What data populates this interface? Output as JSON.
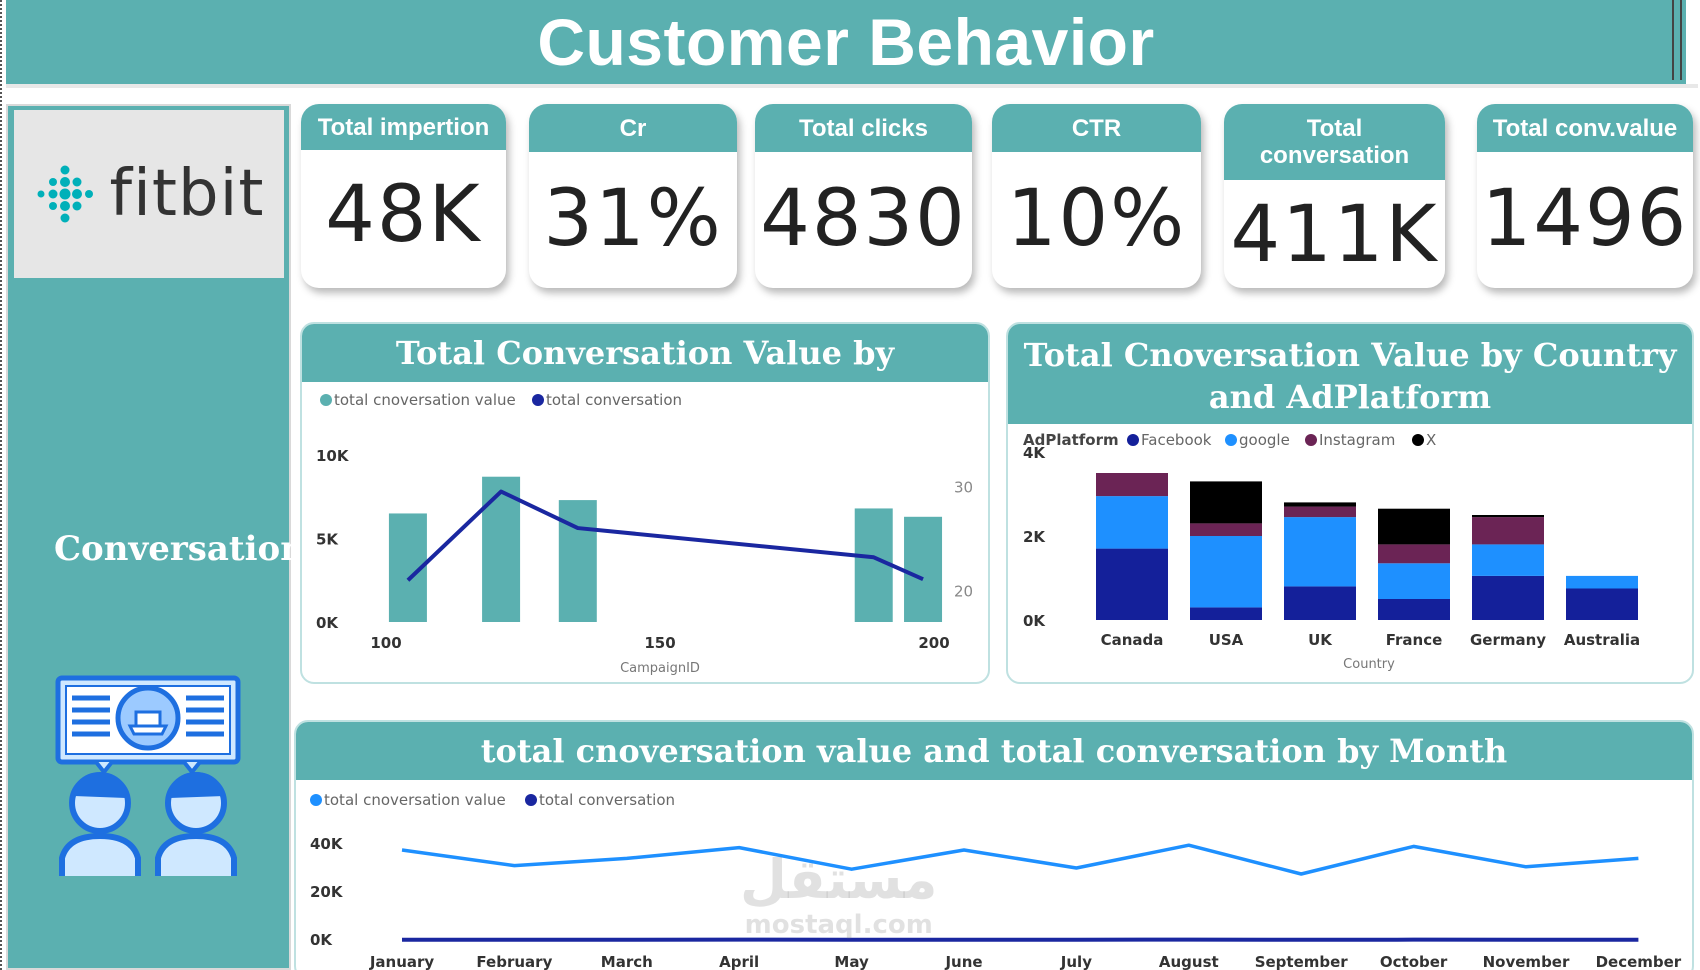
{
  "header": {
    "title": "Customer Behavior"
  },
  "sidebar": {
    "logo_text": "fitbit",
    "label": "Conversation"
  },
  "kpis": [
    {
      "label": "Total impertion",
      "value": "48K"
    },
    {
      "label": "Cr",
      "value": "31%"
    },
    {
      "label": "Total clicks",
      "value": "4830"
    },
    {
      "label": "CTR",
      "value": "10%"
    },
    {
      "label": "Total conversation",
      "value": "411K"
    },
    {
      "label": "Total conv.value",
      "value": "1496"
    }
  ],
  "colors": {
    "teal": "#5bb0b0",
    "navy": "#1a27a0",
    "blue": "#1e90ff",
    "dark_navy": "#14209a",
    "plum": "#6b2455",
    "black": "#000000"
  },
  "chart_data": [
    {
      "type": "bar",
      "title": "Total Conversation Value by CampaignID",
      "legend": [
        "total cnoversation value",
        "total conversation"
      ],
      "xlabel": "CampaignID",
      "x_ticks": [
        "100",
        "150",
        "200"
      ],
      "y_ticks": [
        "10K",
        "5K",
        "0K"
      ],
      "y2_ticks": [
        "30",
        "20"
      ],
      "ylim": [
        0,
        10000
      ],
      "y2lim": [
        17,
        33
      ],
      "xlim": [
        100,
        200
      ],
      "bars": [
        {
          "x": 104,
          "value": 6500
        },
        {
          "x": 121,
          "value": 8700
        },
        {
          "x": 135,
          "value": 7300
        },
        {
          "x": 189,
          "value": 6800
        },
        {
          "x": 198,
          "value": 6300
        }
      ],
      "line": [
        {
          "x": 104,
          "value": 21
        },
        {
          "x": 121,
          "value": 29.5
        },
        {
          "x": 135,
          "value": 26
        },
        {
          "x": 189,
          "value": 23.2
        },
        {
          "x": 198,
          "value": 21.1
        }
      ]
    },
    {
      "type": "bar",
      "stacked": true,
      "title": "Total Cnoversation Value by Country and AdPlatform",
      "legend_title": "AdPlatform",
      "xlabel": "Country",
      "categories": [
        "Canada",
        "USA",
        "UK",
        "France",
        "Germany",
        "Australia"
      ],
      "y_ticks": [
        "4K",
        "2K",
        "0K"
      ],
      "ylim": [
        0,
        4000
      ],
      "series": [
        {
          "name": "Facebook",
          "values": [
            1700,
            300,
            800,
            500,
            1050,
            750
          ]
        },
        {
          "name": "google",
          "values": [
            1250,
            1700,
            1650,
            850,
            750,
            300
          ]
        },
        {
          "name": "Instagram",
          "values": [
            550,
            300,
            250,
            450,
            650,
            0
          ]
        },
        {
          "name": "X",
          "values": [
            0,
            1000,
            100,
            850,
            50,
            0
          ]
        }
      ]
    },
    {
      "type": "line",
      "title": "total cnoversation value and total conversation by Month",
      "legend": [
        "total cnoversation value",
        "total conversation"
      ],
      "categories": [
        "January",
        "February",
        "March",
        "April",
        "May",
        "June",
        "July",
        "August",
        "September",
        "October",
        "November",
        "December"
      ],
      "y_ticks": [
        "40K",
        "20K",
        "0K"
      ],
      "ylim": [
        0,
        40000
      ],
      "series": [
        {
          "name": "total cnoversation value",
          "values": [
            37500,
            31000,
            34000,
            38500,
            29500,
            37500,
            30000,
            39500,
            27500,
            39000,
            30500,
            34000
          ]
        },
        {
          "name": "total conversation",
          "values": [
            120,
            130,
            125,
            140,
            110,
            125,
            118,
            140,
            100,
            135,
            110,
            128
          ]
        }
      ]
    }
  ],
  "watermark": {
    "arabic": "مستقل",
    "latin": "mostaql.com"
  }
}
